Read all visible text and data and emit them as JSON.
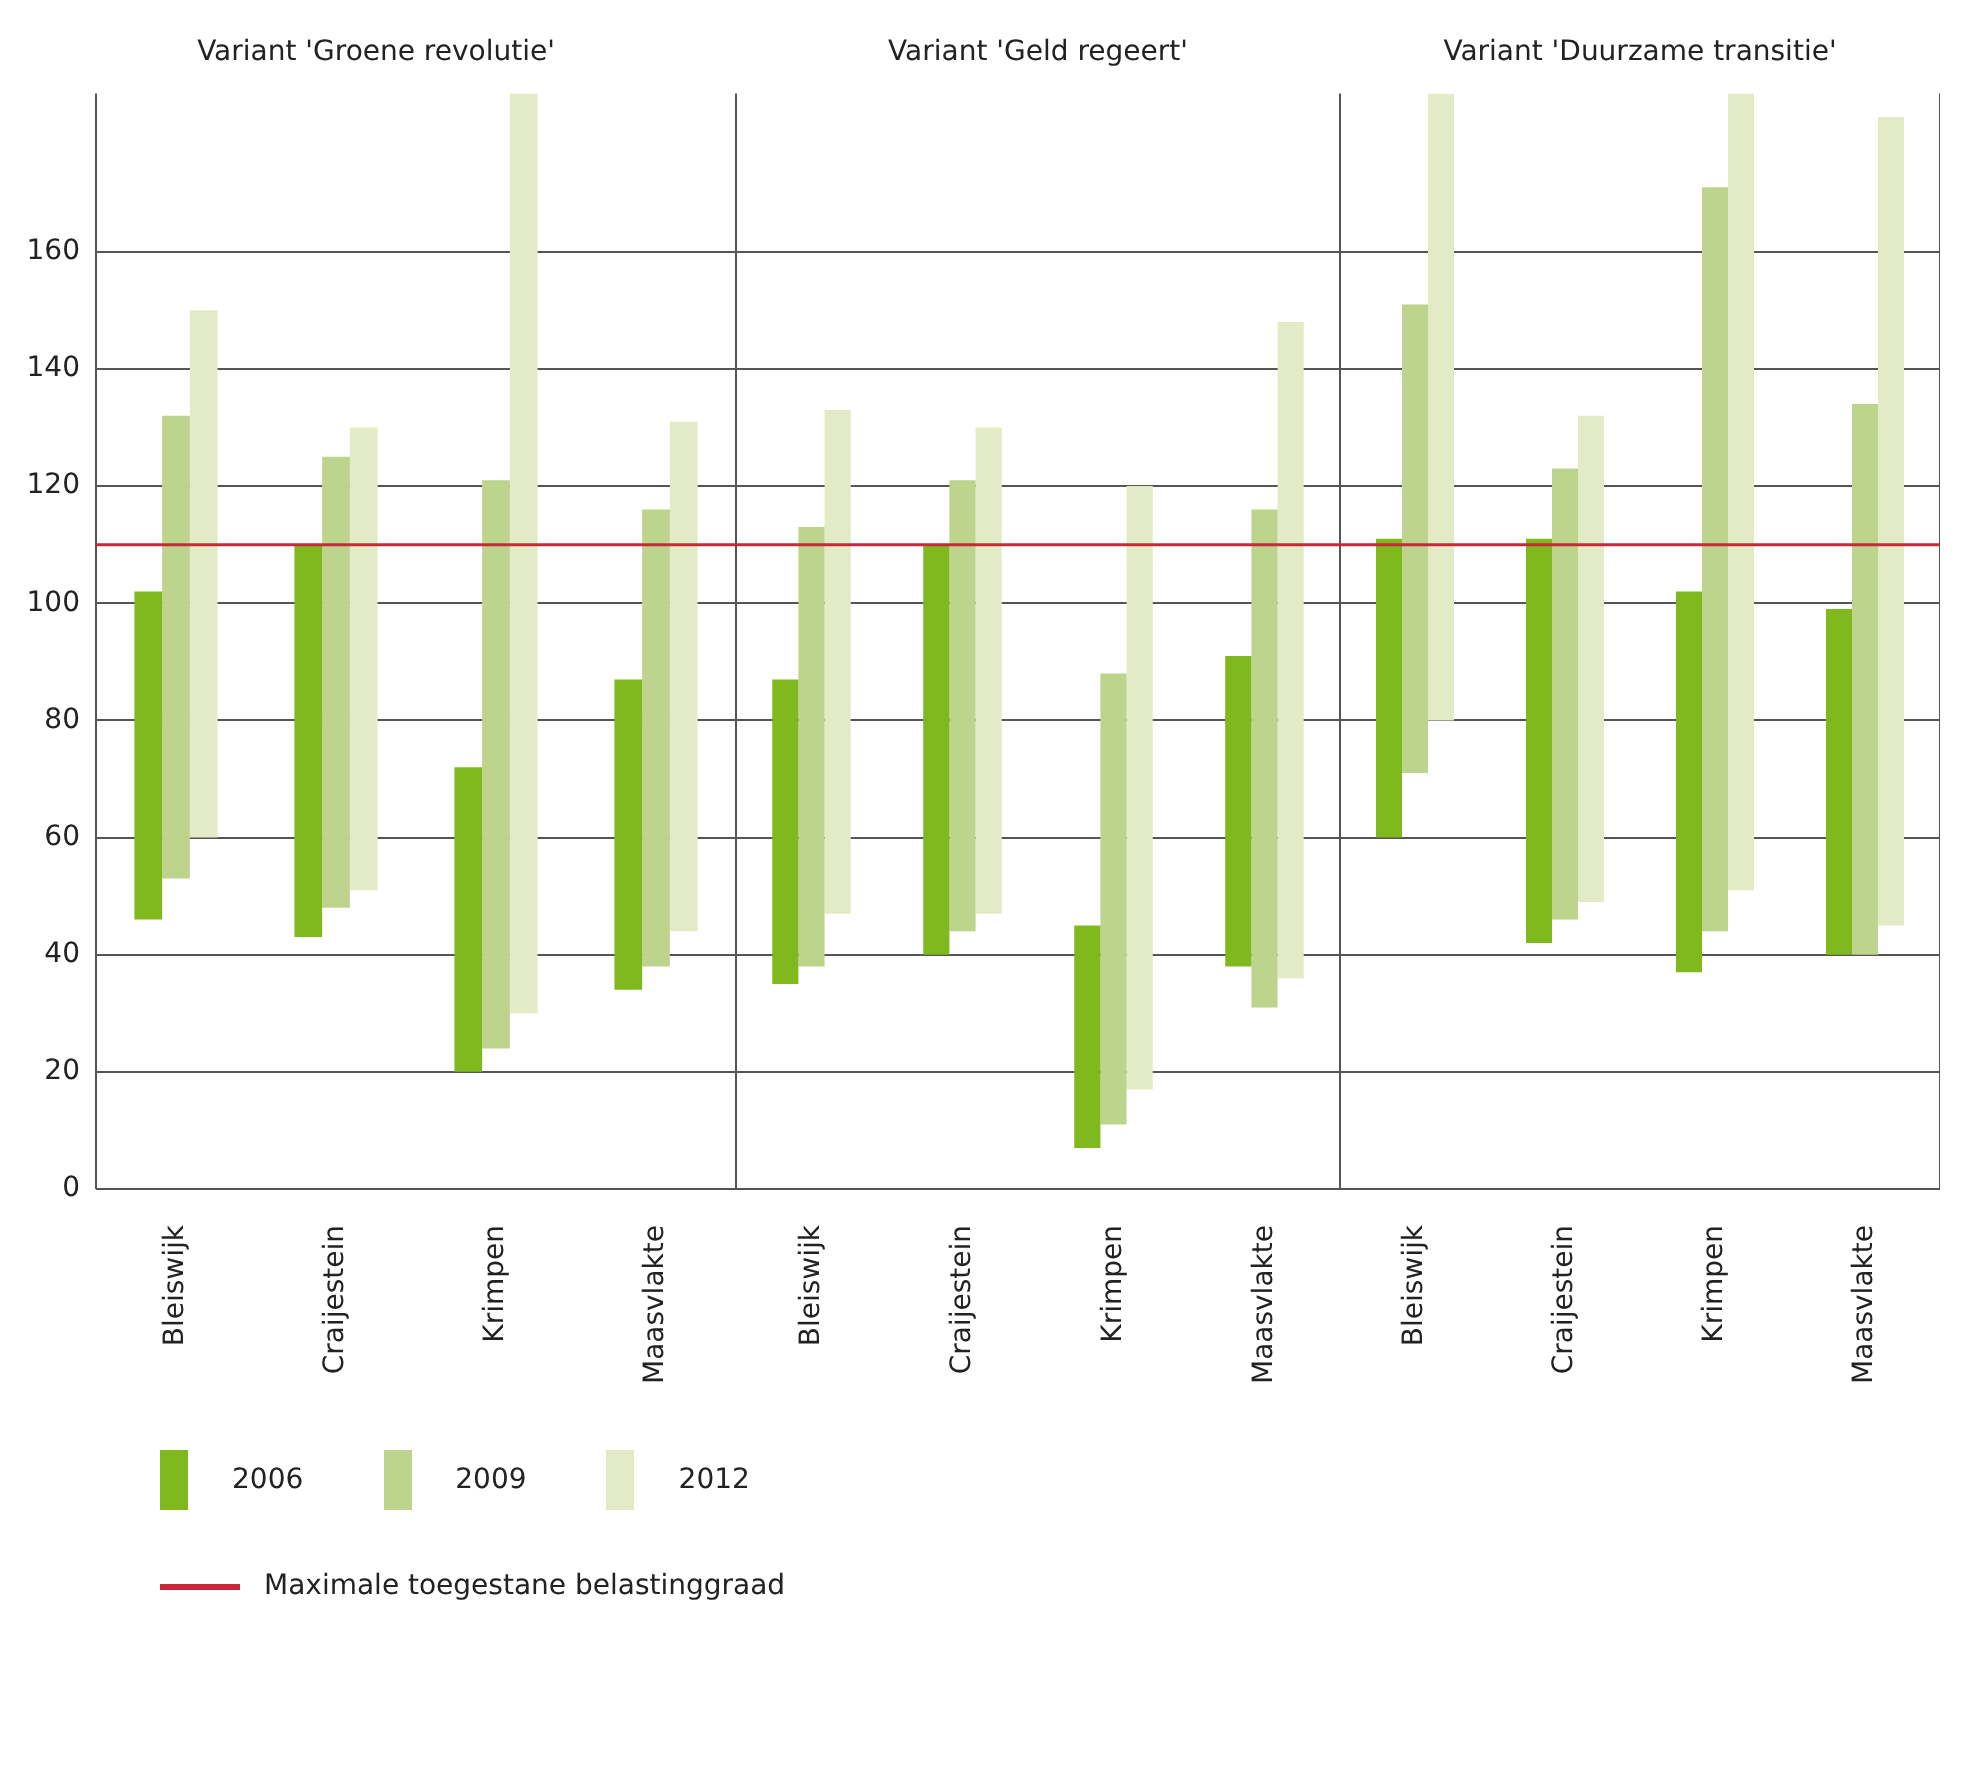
{
  "chart_data": [
    {
      "type": "bar",
      "title": "Variant 'Groene revolutie'",
      "categories": [
        "Bleiswijk",
        "Craijestein",
        "Krimpen",
        "Maasvlakte"
      ],
      "series": [
        {
          "name": "2006",
          "color": "#80b91e",
          "base": [
            46,
            43,
            20,
            34
          ],
          "values": [
            56,
            67,
            52,
            53
          ]
        },
        {
          "name": "2009",
          "color": "#bcd48c",
          "base": [
            53,
            48,
            24,
            38
          ],
          "values": [
            79,
            77,
            97,
            78
          ]
        },
        {
          "name": "2012",
          "color": "#e3ebc6",
          "base": [
            60,
            51,
            30,
            44
          ],
          "values": [
            90,
            79,
            157,
            87
          ]
        }
      ],
      "ylim": [
        0,
        187
      ],
      "yticks": [
        0,
        20,
        40,
        60,
        80,
        100,
        120,
        140,
        160
      ],
      "grid": "y",
      "legend": "bottom",
      "ref_lines": [
        {
          "axis": "y",
          "value": 110,
          "label": "Maximale toegestane belastinggraad",
          "color": "#c8283a"
        }
      ]
    },
    {
      "type": "bar",
      "title": "Variant 'Geld regeert'",
      "categories": [
        "Bleiswijk",
        "Craijestein",
        "Krimpen",
        "Maasvlakte"
      ],
      "series": [
        {
          "color": "#80b91e",
          "base": [
            35,
            40,
            7,
            38
          ],
          "values": [
            52,
            70,
            38,
            53
          ]
        },
        {
          "color": "#bcd48c",
          "base": [
            38,
            44,
            11,
            31
          ],
          "values": [
            75,
            77,
            77,
            85
          ]
        },
        {
          "color": "#e3ebc6",
          "base": [
            47,
            47,
            17,
            36
          ],
          "values": [
            86,
            83,
            103,
            112
          ]
        }
      ],
      "ylim": [
        0,
        187
      ],
      "yticks": [
        0,
        20,
        40,
        60,
        80,
        100,
        120,
        140,
        160
      ],
      "grid": "y",
      "tick_labels": "x",
      "ref_lines": [
        {
          "axis": "y",
          "value": 110,
          "color": "#c8283a"
        }
      ]
    },
    {
      "type": "bar",
      "title": "Variant 'Duurzame transitie'",
      "categories": [
        "Bleiswijk",
        "Craijestein",
        "Krimpen",
        "Maasvlakte"
      ],
      "series": [
        {
          "color": "#80b91e",
          "base": [
            60,
            42,
            37,
            40
          ],
          "values": [
            51,
            69,
            65,
            59
          ]
        },
        {
          "color": "#bcd48c",
          "base": [
            71,
            46,
            44,
            40
          ],
          "values": [
            80,
            77,
            127,
            94
          ]
        },
        {
          "color": "#e3ebc6",
          "base": [
            80,
            49,
            51,
            45
          ],
          "values": [
            107,
            83,
            136,
            138
          ]
        }
      ],
      "ylim": [
        0,
        187
      ],
      "yticks": [
        0,
        20,
        40,
        60,
        80,
        100,
        120,
        140,
        160
      ],
      "grid": "y",
      "tick_labels": "x",
      "ref_lines": [
        {
          "axis": "y",
          "value": 110,
          "color": "#c8283a"
        }
      ]
    }
  ]
}
